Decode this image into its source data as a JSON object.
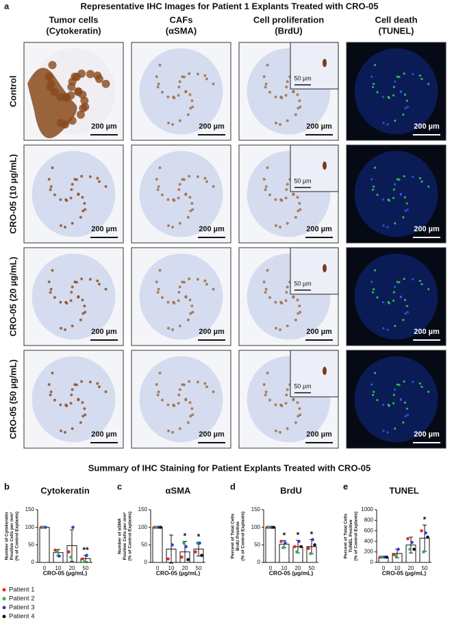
{
  "panel_a": {
    "letter": "a",
    "title": "Representative IHC Images for Patient 1 Explants Treated with CRO-05",
    "columns": [
      [
        "Tumor cells",
        "(Cytokeratin)"
      ],
      [
        "CAFs",
        "(αSMA)"
      ],
      [
        "Cell proliferation",
        "(BrdU)"
      ],
      [
        "Cell death",
        "(TUNEL)"
      ]
    ],
    "rows": [
      "Control",
      "CRO-05 (10 µg/mL)",
      "CRO-05 (20 µg/mL)",
      "CRO-05 (50 µg/mL)"
    ],
    "scale_bar": "200 µm",
    "inset_scale_bar": "50 µm"
  },
  "summary_title": "Summary of IHC Staining for Patient Explants Treated with CRO-05",
  "chart_data": [
    {
      "type": "bar",
      "letter": "b",
      "title": "Cytokeratin",
      "y_label": [
        "Number of Cytokeratin",
        "Positive Cells per mm²",
        "(% of Control Explants)"
      ],
      "x_label": "CRO-05 (µg/mL)",
      "categories": [
        "0",
        "10",
        "20",
        "50"
      ],
      "values": [
        100,
        28,
        48,
        11
      ],
      "errors": [
        0,
        9,
        45,
        9
      ],
      "significance": [
        null,
        null,
        null,
        "**"
      ],
      "ylim": [
        0,
        150
      ],
      "yticks": [
        0,
        50,
        100,
        150
      ],
      "series": [
        {
          "name": "Patient 1",
          "color": "#e8262a",
          "values": [
            100,
            35,
            30,
            10
          ]
        },
        {
          "name": "Patient 2",
          "color": "#2db34a",
          "values": [
            100,
            30,
            15,
            2
          ]
        },
        {
          "name": "Patient 3",
          "color": "#2b3fd6",
          "values": [
            100,
            18,
            100,
            20
          ]
        },
        {
          "name": "Patient 4",
          "color": "#111111",
          "values": [
            null,
            null,
            null,
            null
          ]
        }
      ]
    },
    {
      "type": "bar",
      "letter": "c",
      "title": "αSMA",
      "y_label": [
        "Number of αSMA",
        "Positive Cells per mm²",
        "(% of Control Explants)"
      ],
      "x_label": "CRO-05 (µg/mL)",
      "categories": [
        "0",
        "10",
        "20",
        "50"
      ],
      "values": [
        100,
        38,
        30,
        38
      ],
      "errors": [
        0,
        40,
        30,
        20
      ],
      "significance": [
        null,
        null,
        "*",
        "*"
      ],
      "ylim": [
        0,
        150
      ],
      "yticks": [
        0,
        50,
        100,
        150
      ],
      "series": [
        {
          "name": "Patient 1",
          "color": "#e8262a",
          "values": [
            100,
            10,
            15,
            30
          ]
        },
        {
          "name": "Patient 2",
          "color": "#2db34a",
          "values": [
            100,
            null,
            55,
            55
          ]
        },
        {
          "name": "Patient 3",
          "color": "#2b3fd6",
          "values": [
            100,
            50,
            45,
            55
          ]
        },
        {
          "name": "Patient 4",
          "color": "#111111",
          "values": [
            100,
            null,
            8,
            20
          ]
        }
      ]
    },
    {
      "type": "bar",
      "letter": "d",
      "title": "BrdU",
      "y_label": [
        "Percent of Total Cells",
        "BrdU Positive",
        "(% of Control Explants)"
      ],
      "x_label": "CRO-05 (µg/mL)",
      "categories": [
        "0",
        "10",
        "20",
        "50"
      ],
      "values": [
        100,
        52,
        45,
        45
      ],
      "errors": [
        0,
        10,
        18,
        20
      ],
      "significance": [
        null,
        "*",
        "*",
        "*"
      ],
      "ylim": [
        0,
        150
      ],
      "yticks": [
        0,
        50,
        100,
        150
      ],
      "series": [
        {
          "name": "Patient 1",
          "color": "#e8262a",
          "values": [
            100,
            60,
            45,
            40
          ]
        },
        {
          "name": "Patient 2",
          "color": "#2db34a",
          "values": [
            100,
            42,
            30,
            25
          ]
        },
        {
          "name": "Patient 3",
          "color": "#2b3fd6",
          "values": [
            100,
            55,
            60,
            65
          ]
        },
        {
          "name": "Patient 4",
          "color": "#111111",
          "values": [
            100,
            null,
            45,
            50
          ]
        }
      ]
    },
    {
      "type": "bar",
      "letter": "e",
      "title": "TUNEL",
      "y_label": [
        "Percent of Total Cells",
        "TUNEL Positive",
        "(% of Control Explants)"
      ],
      "x_label": "CRO-05 (µg/mL)",
      "categories": [
        "0",
        "10",
        "20",
        "50"
      ],
      "values": [
        100,
        170,
        330,
        460
      ],
      "errors": [
        0,
        80,
        150,
        250
      ],
      "significance": [
        null,
        null,
        null,
        "*"
      ],
      "ylim": [
        0,
        1000
      ],
      "yticks": [
        0,
        200,
        400,
        600,
        800,
        1000
      ],
      "series": [
        {
          "name": "Patient 1",
          "color": "#e8262a",
          "values": [
            100,
            150,
            450,
            600
          ]
        },
        {
          "name": "Patient 2",
          "color": "#2db34a",
          "values": [
            100,
            120,
            250,
            200
          ]
        },
        {
          "name": "Patient 3",
          "color": "#2b3fd6",
          "values": [
            100,
            250,
            380,
            560
          ]
        },
        {
          "name": "Patient 4",
          "color": "#111111",
          "values": [
            100,
            null,
            250,
            480
          ]
        }
      ]
    }
  ]
}
